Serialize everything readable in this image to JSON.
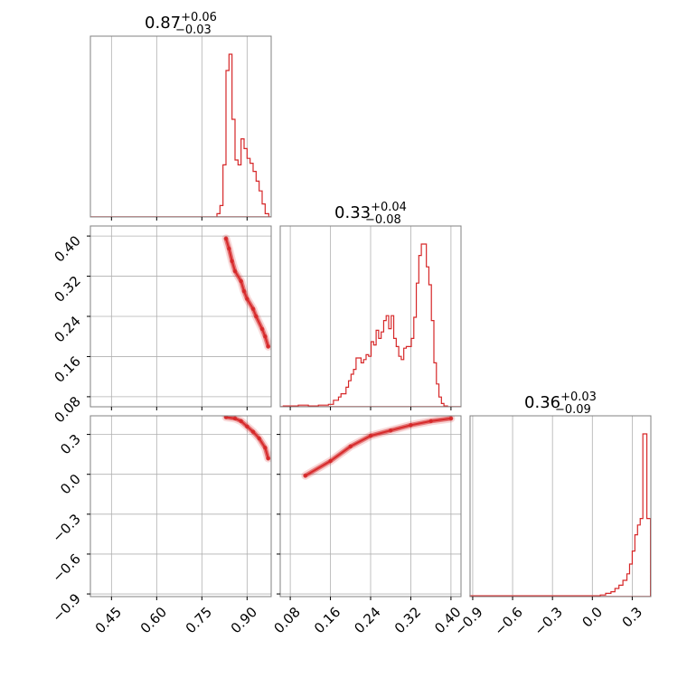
{
  "colors": {
    "accent": "#d62728",
    "grid": "#b0b0b0",
    "frame": "#808080",
    "text": "#000000"
  },
  "chart_data": {
    "type": "corner",
    "grid": true,
    "parameters": [
      {
        "title": {
          "value": "0.87",
          "plus": "+0.06",
          "minus": "−0.03"
        },
        "range": [
          0.38,
          0.98
        ],
        "ticks": [
          0.45,
          0.6,
          0.75,
          0.9
        ],
        "tick_labels": [
          "0.45",
          "0.60",
          "0.75",
          "0.90"
        ]
      },
      {
        "title": {
          "value": "0.33",
          "plus": "+0.04",
          "minus": "−0.08"
        },
        "range": [
          0.06,
          0.42
        ],
        "ticks": [
          0.08,
          0.16,
          0.24,
          0.32,
          0.4
        ],
        "tick_labels": [
          "0.08",
          "0.16",
          "0.24",
          "0.32",
          "0.40"
        ]
      },
      {
        "title": {
          "value": "0.36",
          "plus": "+0.03",
          "minus": "−0.09"
        },
        "range": [
          -0.92,
          0.44
        ],
        "ticks": [
          -0.9,
          -0.6,
          -0.3,
          0.0,
          0.3
        ],
        "tick_labels": [
          "−0.9",
          "−0.6",
          "−0.3",
          "0.0",
          "0.3"
        ]
      }
    ],
    "histograms": [
      {
        "param": 0,
        "bins": [
          [
            0.8,
            0.02
          ],
          [
            0.81,
            0.07
          ],
          [
            0.82,
            0.32
          ],
          [
            0.83,
            0.9
          ],
          [
            0.84,
            1.0
          ],
          [
            0.85,
            0.6
          ],
          [
            0.86,
            0.35
          ],
          [
            0.87,
            0.32
          ],
          [
            0.88,
            0.48
          ],
          [
            0.89,
            0.42
          ],
          [
            0.9,
            0.36
          ],
          [
            0.91,
            0.33
          ],
          [
            0.92,
            0.28
          ],
          [
            0.93,
            0.22
          ],
          [
            0.94,
            0.16
          ],
          [
            0.95,
            0.08
          ],
          [
            0.96,
            0.02
          ]
        ]
      },
      {
        "param": 1,
        "bins": [
          [
            0.066,
            0.005
          ],
          [
            0.076,
            0.005
          ],
          [
            0.086,
            0.005
          ],
          [
            0.096,
            0.01
          ],
          [
            0.106,
            0.01
          ],
          [
            0.116,
            0.005
          ],
          [
            0.126,
            0.005
          ],
          [
            0.136,
            0.01
          ],
          [
            0.146,
            0.01
          ],
          [
            0.156,
            0.015
          ],
          [
            0.166,
            0.04
          ],
          [
            0.171,
            0.04
          ],
          [
            0.176,
            0.06
          ],
          [
            0.181,
            0.08
          ],
          [
            0.186,
            0.08
          ],
          [
            0.191,
            0.12
          ],
          [
            0.196,
            0.16
          ],
          [
            0.201,
            0.2
          ],
          [
            0.206,
            0.23
          ],
          [
            0.211,
            0.3
          ],
          [
            0.216,
            0.3
          ],
          [
            0.221,
            0.27
          ],
          [
            0.226,
            0.29
          ],
          [
            0.231,
            0.32
          ],
          [
            0.236,
            0.31
          ],
          [
            0.241,
            0.4
          ],
          [
            0.246,
            0.38
          ],
          [
            0.251,
            0.47
          ],
          [
            0.256,
            0.42
          ],
          [
            0.261,
            0.46
          ],
          [
            0.266,
            0.53
          ],
          [
            0.271,
            0.56
          ],
          [
            0.276,
            0.48
          ],
          [
            0.281,
            0.56
          ],
          [
            0.286,
            0.42
          ],
          [
            0.291,
            0.37
          ],
          [
            0.296,
            0.31
          ],
          [
            0.301,
            0.29
          ],
          [
            0.306,
            0.36
          ],
          [
            0.311,
            0.37
          ],
          [
            0.316,
            0.37
          ],
          [
            0.321,
            0.42
          ],
          [
            0.326,
            0.55
          ],
          [
            0.331,
            0.76
          ],
          [
            0.336,
            0.93
          ],
          [
            0.341,
            1.0
          ],
          [
            0.346,
            1.0
          ],
          [
            0.351,
            0.86
          ],
          [
            0.356,
            0.75
          ],
          [
            0.361,
            0.53
          ],
          [
            0.366,
            0.27
          ],
          [
            0.371,
            0.14
          ],
          [
            0.376,
            0.06
          ],
          [
            0.381,
            0.02
          ],
          [
            0.386,
            0.005
          ]
        ]
      },
      {
        "param": 2,
        "bins": [
          [
            -0.92,
            0.005
          ],
          [
            0.02,
            0.005
          ],
          [
            0.06,
            0.01
          ],
          [
            0.1,
            0.02
          ],
          [
            0.14,
            0.03
          ],
          [
            0.17,
            0.05
          ],
          [
            0.2,
            0.07
          ],
          [
            0.23,
            0.1
          ],
          [
            0.26,
            0.14
          ],
          [
            0.28,
            0.2
          ],
          [
            0.3,
            0.28
          ],
          [
            0.32,
            0.38
          ],
          [
            0.34,
            0.44
          ],
          [
            0.36,
            0.48
          ],
          [
            0.38,
            1.0
          ],
          [
            0.41,
            0.48
          ]
        ]
      }
    ],
    "scatter": [
      {
        "x_param": 0,
        "y_param": 1,
        "points": [
          [
            0.83,
            0.395
          ],
          [
            0.84,
            0.375
          ],
          [
            0.85,
            0.35
          ],
          [
            0.86,
            0.33
          ],
          [
            0.88,
            0.31
          ],
          [
            0.89,
            0.29
          ],
          [
            0.9,
            0.275
          ],
          [
            0.92,
            0.255
          ],
          [
            0.93,
            0.24
          ],
          [
            0.95,
            0.215
          ],
          [
            0.96,
            0.2
          ],
          [
            0.97,
            0.18
          ]
        ]
      },
      {
        "x_param": 0,
        "y_param": 2,
        "points": [
          [
            0.83,
            0.43
          ],
          [
            0.86,
            0.42
          ],
          [
            0.88,
            0.4
          ],
          [
            0.9,
            0.36
          ],
          [
            0.92,
            0.32
          ],
          [
            0.94,
            0.27
          ],
          [
            0.96,
            0.2
          ],
          [
            0.97,
            0.12
          ]
        ]
      },
      {
        "x_param": 1,
        "y_param": 2,
        "points": [
          [
            0.11,
            -0.01
          ],
          [
            0.16,
            0.1
          ],
          [
            0.2,
            0.21
          ],
          [
            0.24,
            0.29
          ],
          [
            0.28,
            0.33
          ],
          [
            0.32,
            0.37
          ],
          [
            0.36,
            0.4
          ],
          [
            0.4,
            0.42
          ]
        ]
      }
    ]
  }
}
